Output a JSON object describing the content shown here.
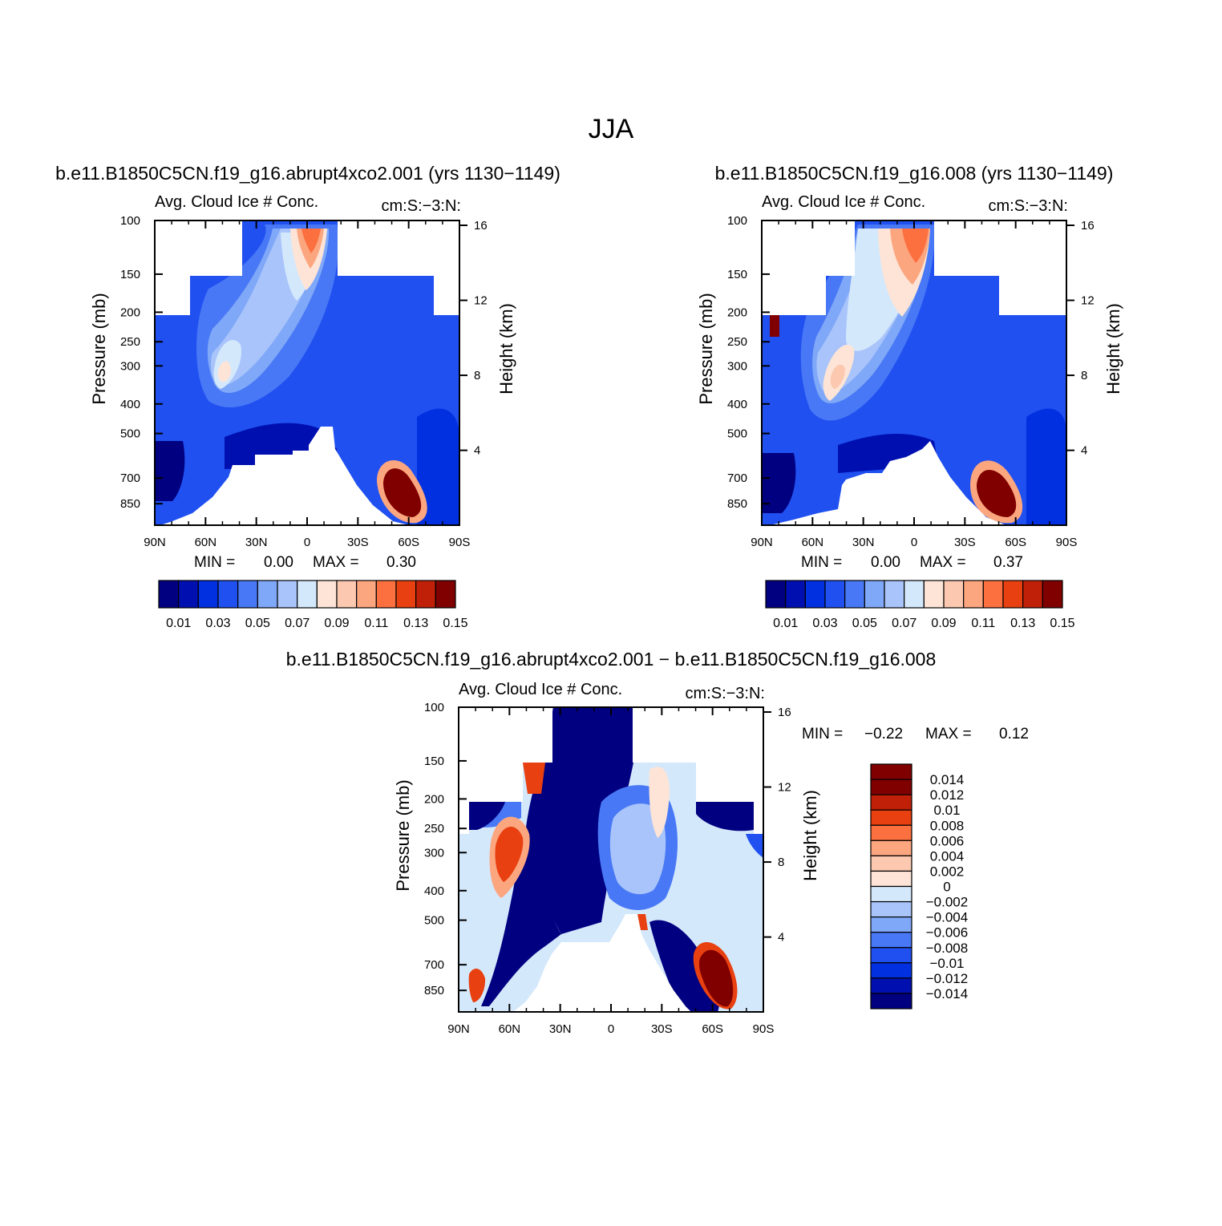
{
  "figure": {
    "title": "JJA"
  },
  "colorbar_ticks": [
    "0.01",
    "0.03",
    "0.05",
    "0.07",
    "0.09",
    "0.11",
    "0.13",
    "0.15"
  ],
  "palette_top": [
    "#000080",
    "#0010b0",
    "#0030e0",
    "#2050f0",
    "#4878f5",
    "#80a8f8",
    "#a8c4fa",
    "#d4e8fc",
    "#fde4d6",
    "#fcc8b0",
    "#fca680",
    "#fc7040",
    "#e84010",
    "#c02008",
    "#800000"
  ],
  "palette_diff": [
    "#000080",
    "#0010b0",
    "#0030e0",
    "#2050f0",
    "#4878f5",
    "#80a8f8",
    "#a8c4fa",
    "#d4e8fc",
    "#fde4d6",
    "#fcc8b0",
    "#fca680",
    "#fc7040",
    "#e84010",
    "#c02008",
    "#800000"
  ],
  "chart_data": [
    {
      "type": "heatmap",
      "title": "b.e11.B1850C5CN.f19_g16.abrupt4xco2.001 (yrs 1130−1149)",
      "subtitle_left": "Avg. Cloud Ice # Conc.",
      "subtitle_right": "cm:S:−3:N:",
      "ylabel": "Pressure (mb)",
      "y2label": "Height (km)",
      "xticks": [
        "90N",
        "60N",
        "30N",
        "0",
        "30S",
        "60S",
        "90S"
      ],
      "yticks": [
        "100",
        "150",
        "200",
        "250",
        "300",
        "400",
        "500",
        "700",
        "850"
      ],
      "y2ticks": [
        "16",
        "12",
        "8",
        "4"
      ],
      "min_text": "MIN =",
      "min_value": "0.00",
      "max_text": "MAX =",
      "max_value": "0.30",
      "colorbar_levels": [
        0.01,
        0.02,
        0.03,
        0.04,
        0.05,
        0.06,
        0.07,
        0.08,
        0.09,
        0.1,
        0.11,
        0.12,
        0.13,
        0.14
      ],
      "ylim": [
        100,
        1000
      ],
      "xlim": [
        "90N",
        "90S"
      ]
    },
    {
      "type": "heatmap",
      "title": "b.e11.B1850C5CN.f19_g16.008 (yrs 1130−1149)",
      "subtitle_left": "Avg. Cloud Ice # Conc.",
      "subtitle_right": "cm:S:−3:N:",
      "ylabel": "Pressure (mb)",
      "y2label": "Height (km)",
      "xticks": [
        "90N",
        "60N",
        "30N",
        "0",
        "30S",
        "60S",
        "90S"
      ],
      "yticks": [
        "100",
        "150",
        "200",
        "250",
        "300",
        "400",
        "500",
        "700",
        "850"
      ],
      "y2ticks": [
        "16",
        "12",
        "8",
        "4"
      ],
      "min_text": "MIN =",
      "min_value": "0.00",
      "max_text": "MAX =",
      "max_value": "0.37",
      "colorbar_levels": [
        0.01,
        0.02,
        0.03,
        0.04,
        0.05,
        0.06,
        0.07,
        0.08,
        0.09,
        0.1,
        0.11,
        0.12,
        0.13,
        0.14
      ],
      "ylim": [
        100,
        1000
      ],
      "xlim": [
        "90N",
        "90S"
      ]
    },
    {
      "type": "heatmap",
      "title": "b.e11.B1850C5CN.f19_g16.abrupt4xco2.001 − b.e11.B1850C5CN.f19_g16.008",
      "subtitle_left": "Avg. Cloud Ice # Conc.",
      "subtitle_right": "cm:S:−3:N:",
      "ylabel": "Pressure (mb)",
      "y2label": "Height (km)",
      "xticks": [
        "90N",
        "60N",
        "30N",
        "0",
        "30S",
        "60S",
        "90S"
      ],
      "yticks": [
        "100",
        "150",
        "200",
        "250",
        "300",
        "400",
        "500",
        "700",
        "850"
      ],
      "y2ticks": [
        "16",
        "12",
        "8",
        "4"
      ],
      "min_text": "MIN =",
      "min_value": "−0.22",
      "max_text": "MAX =",
      "max_value": "0.12",
      "colorbar_labels": [
        "0.014",
        "0.012",
        "0.01",
        "0.008",
        "0.006",
        "0.004",
        "0.002",
        "0",
        "−0.002",
        "−0.004",
        "−0.006",
        "−0.008",
        "−0.01",
        "−0.012",
        "−0.014"
      ],
      "ylim": [
        100,
        1000
      ],
      "xlim": [
        "90N",
        "90S"
      ]
    }
  ]
}
